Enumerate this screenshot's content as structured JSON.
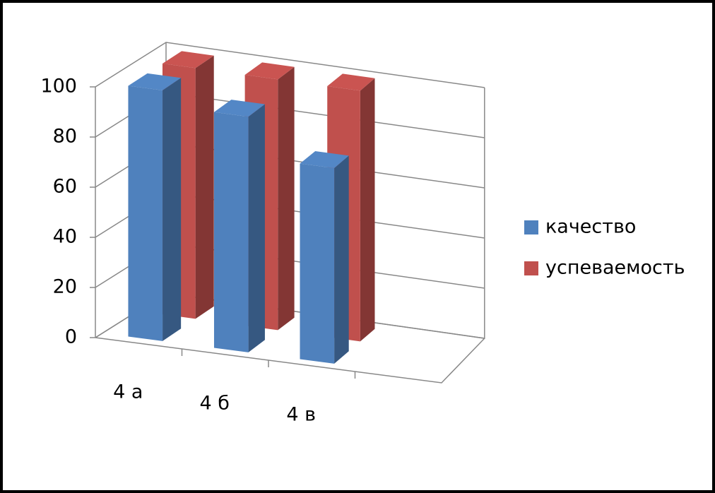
{
  "chart_data": {
    "type": "bar3d",
    "categories": [
      "4 а",
      "4 б",
      "4 в"
    ],
    "series": [
      {
        "name": "качество",
        "color": "#4f81bd",
        "values": [
          100,
          94,
          78
        ]
      },
      {
        "name": "успеваемость",
        "color": "#c0504d",
        "values": [
          100,
          100,
          100
        ]
      }
    ],
    "ylim": [
      0,
      100
    ],
    "yticks": [
      0,
      20,
      40,
      60,
      80,
      100
    ],
    "grid": true,
    "legend": "right"
  }
}
